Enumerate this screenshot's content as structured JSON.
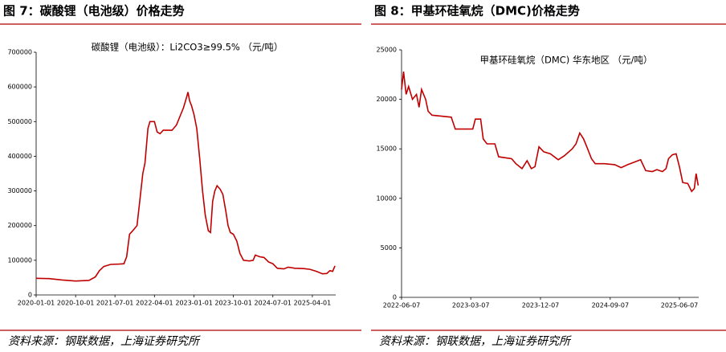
{
  "chart_data": [
    {
      "type": "line",
      "figure_title": "图 7：碳酸锂（电池级）价格走势",
      "title": "碳酸锂（电池级）：Li2CO3≥99.5% （元/吨）",
      "source": "资料来源：钢联数据，上海证券研究所",
      "color": "#c00000",
      "xlim": [
        "2020-01-01",
        "2025-09-10"
      ],
      "xticks": [
        "2020-01-01",
        "2020-10-01",
        "2021-07-01",
        "2022-04-01",
        "2023-01-01",
        "2023-10-01",
        "2024-07-01",
        "2025-04-01"
      ],
      "ylim": [
        0,
        700000
      ],
      "yticks": [
        0,
        100000,
        200000,
        300000,
        400000,
        500000,
        600000,
        700000
      ],
      "x": [
        "2020-01-01",
        "2020-04-01",
        "2020-07-01",
        "2020-10-01",
        "2021-01-01",
        "2021-02-15",
        "2021-03-15",
        "2021-04-15",
        "2021-06-01",
        "2021-08-01",
        "2021-09-01",
        "2021-09-20",
        "2021-10-10",
        "2021-11-01",
        "2021-12-01",
        "2021-12-20",
        "2022-01-10",
        "2022-01-25",
        "2022-02-15",
        "2022-03-01",
        "2022-04-01",
        "2022-04-20",
        "2022-05-10",
        "2022-06-01",
        "2022-08-01",
        "2022-09-01",
        "2022-09-20",
        "2022-10-20",
        "2022-11-10",
        "2022-11-20",
        "2022-12-01",
        "2022-12-15",
        "2023-01-01",
        "2023-01-20",
        "2023-02-10",
        "2023-03-01",
        "2023-03-20",
        "2023-04-10",
        "2023-04-25",
        "2023-05-10",
        "2023-05-25",
        "2023-06-10",
        "2023-07-01",
        "2023-07-20",
        "2023-08-10",
        "2023-08-25",
        "2023-09-10",
        "2023-10-01",
        "2023-10-25",
        "2023-11-15",
        "2023-12-10",
        "2024-01-20",
        "2024-02-15",
        "2024-03-01",
        "2024-04-01",
        "2024-05-01",
        "2024-06-01",
        "2024-07-01",
        "2024-08-01",
        "2024-09-15",
        "2024-10-15",
        "2024-12-01",
        "2025-02-01",
        "2025-03-15",
        "2025-05-01",
        "2025-06-10",
        "2025-07-10",
        "2025-08-01",
        "2025-08-20",
        "2025-09-05"
      ],
      "values": [
        48000,
        47000,
        43000,
        40000,
        42000,
        52000,
        70000,
        82000,
        88000,
        89000,
        90000,
        110000,
        175000,
        185000,
        200000,
        270000,
        350000,
        380000,
        480000,
        500000,
        500000,
        470000,
        465000,
        475000,
        475000,
        490000,
        510000,
        540000,
        570000,
        585000,
        560000,
        545000,
        520000,
        480000,
        390000,
        300000,
        230000,
        185000,
        180000,
        270000,
        300000,
        315000,
        305000,
        290000,
        240000,
        200000,
        180000,
        175000,
        155000,
        120000,
        100000,
        98000,
        100000,
        115000,
        110000,
        108000,
        95000,
        90000,
        77000,
        75000,
        80000,
        77000,
        76000,
        74000,
        68000,
        61000,
        62000,
        70000,
        68000,
        84000
      ]
    },
    {
      "type": "line",
      "figure_title": "图 8：甲基环硅氧烷（DMC)价格走势",
      "title": "甲基环硅氧烷（DMC) 华东地区 （元/吨）",
      "source": "资料来源：钢联数据，上海证券研究所",
      "color": "#c00000",
      "xlim": [
        "2022-06-07",
        "2025-08-22"
      ],
      "xticks": [
        "2022-06-07",
        "2023-03-07",
        "2023-12-07",
        "2024-09-07",
        "2025-06-07"
      ],
      "ylim": [
        0,
        25000
      ],
      "yticks": [
        0,
        5000,
        10000,
        15000,
        20000,
        25000
      ],
      "x": [
        "2022-06-07",
        "2022-06-15",
        "2022-06-25",
        "2022-07-05",
        "2022-07-20",
        "2022-08-05",
        "2022-08-15",
        "2022-08-25",
        "2022-09-10",
        "2022-09-20",
        "2022-10-05",
        "2022-12-20",
        "2023-01-05",
        "2023-03-15",
        "2023-03-25",
        "2023-04-15",
        "2023-04-25",
        "2023-05-10",
        "2023-06-10",
        "2023-06-25",
        "2023-08-15",
        "2023-09-01",
        "2023-09-25",
        "2023-10-15",
        "2023-11-01",
        "2023-11-15",
        "2023-12-01",
        "2023-12-20",
        "2024-01-15",
        "2024-02-15",
        "2024-03-10",
        "2024-04-10",
        "2024-04-25",
        "2024-05-10",
        "2024-05-25",
        "2024-06-10",
        "2024-06-25",
        "2024-07-10",
        "2024-08-15",
        "2024-09-25",
        "2024-10-20",
        "2024-11-15",
        "2024-12-15",
        "2025-01-05",
        "2025-01-25",
        "2025-02-20",
        "2025-03-10",
        "2025-04-01",
        "2025-04-15",
        "2025-04-25",
        "2025-05-10",
        "2025-05-25",
        "2025-06-07",
        "2025-06-20",
        "2025-07-10",
        "2025-07-25",
        "2025-08-05",
        "2025-08-12",
        "2025-08-20"
      ],
      "values": [
        21000,
        22800,
        20500,
        21300,
        20000,
        20500,
        19200,
        21000,
        20000,
        18800,
        18400,
        18200,
        17000,
        17000,
        18000,
        18000,
        16000,
        15500,
        15500,
        14200,
        14000,
        13500,
        13000,
        13800,
        13000,
        13200,
        15200,
        14700,
        14500,
        13900,
        14300,
        15000,
        15500,
        16600,
        16000,
        15000,
        14000,
        13500,
        13500,
        13400,
        13100,
        13400,
        13700,
        13900,
        12800,
        12700,
        12900,
        12700,
        13000,
        14000,
        14400,
        14500,
        13200,
        11600,
        11500,
        10700,
        11000,
        12500,
        11300
      ]
    }
  ]
}
